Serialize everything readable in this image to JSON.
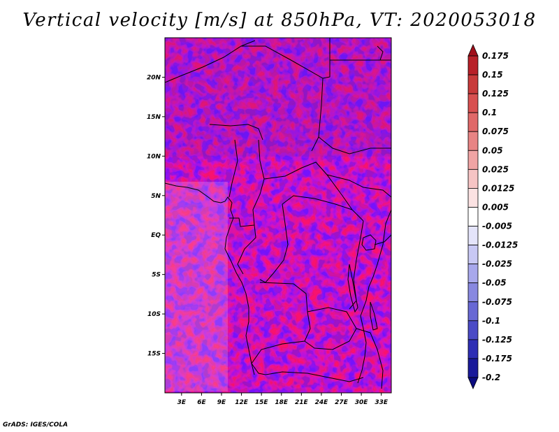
{
  "title": "Vertical velocity [m/s] at 850hPa, VT: 2020053018",
  "footer": "GrADS: IGES/COLA",
  "map": {
    "lon_labels": [
      "3E",
      "6E",
      "9E",
      "12E",
      "15E",
      "18E",
      "21E",
      "24E",
      "27E",
      "30E",
      "33E"
    ],
    "lat_labels": [
      "20N",
      "15N",
      "10N",
      "5N",
      "EQ",
      "5S",
      "10S",
      "15S"
    ],
    "lon_range": [
      0.5,
      34.5
    ],
    "lat_range": [
      -20,
      25
    ],
    "lon_ticks": [
      3,
      6,
      9,
      12,
      15,
      18,
      21,
      24,
      27,
      30,
      33
    ],
    "lat_ticks": [
      20,
      15,
      10,
      5,
      0,
      -5,
      -10,
      -15
    ]
  },
  "colorbar": {
    "labels": [
      "0.175",
      "0.15",
      "0.125",
      "0.1",
      "0.075",
      "0.05",
      "0.025",
      "0.0125",
      "0.005",
      "-0.005",
      "-0.0125",
      "-0.025",
      "-0.05",
      "-0.075",
      "-0.1",
      "-0.125",
      "-0.175",
      "-0.2"
    ],
    "colors": [
      "#a00e1a",
      "#b82028",
      "#c83a3a",
      "#d85050",
      "#e06868",
      "#e88484",
      "#f0a4a4",
      "#f6c4c4",
      "#fbe2e2",
      "#ffffff",
      "#e4e4fa",
      "#c8c8f4",
      "#a8a8ec",
      "#8888e0",
      "#6868d4",
      "#4a4ac6",
      "#2e2eb4",
      "#1a1a9a",
      "#0c0c80"
    ]
  }
}
